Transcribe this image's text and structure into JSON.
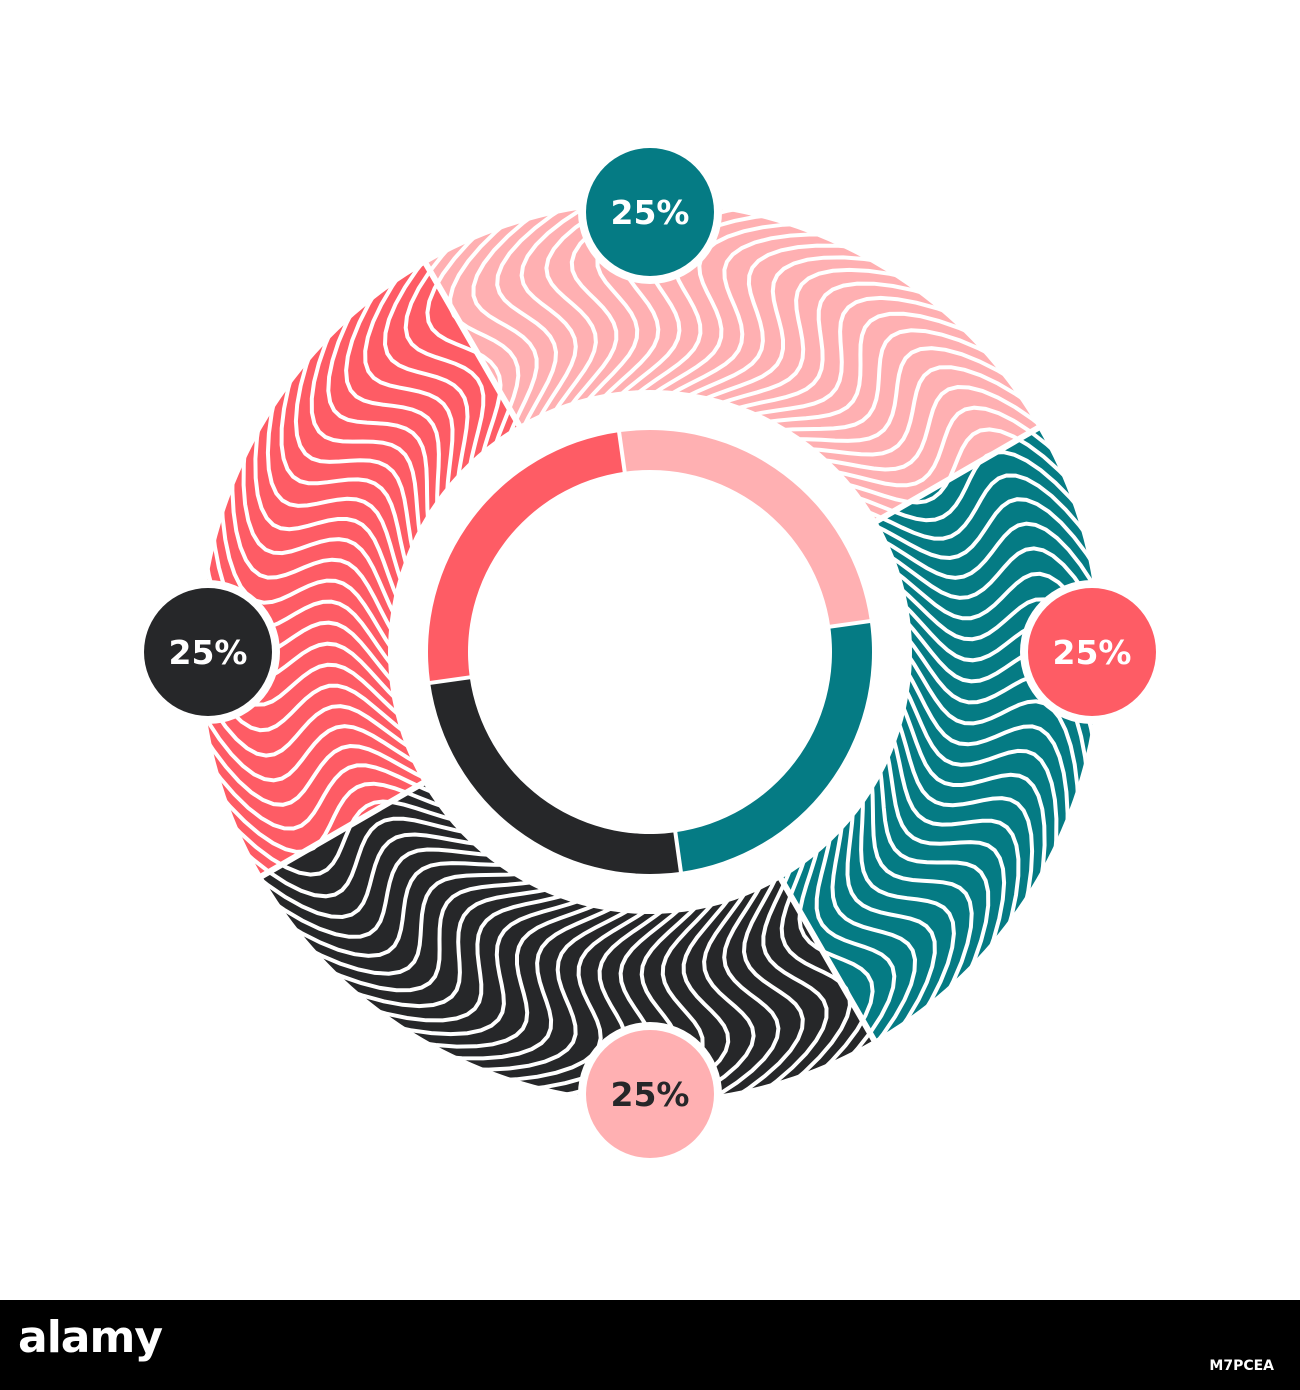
{
  "chart_data": {
    "type": "pie",
    "style": "donut with wavy striped outer ring and thin inner ring",
    "categories": [
      "",
      "",
      "",
      ""
    ],
    "values": [
      25,
      25,
      25,
      25
    ],
    "labels": [
      "25%",
      "25%",
      "25%",
      "25%"
    ],
    "slice_colors": [
      "#FFB0B2",
      "#057B84",
      "#262729",
      "#FE5C65"
    ],
    "badge_colors": [
      "#057B84",
      "#FE5C65",
      "#FFB0B2",
      "#262729"
    ],
    "badge_text_colors": [
      "#ffffff",
      "#ffffff",
      "#262729",
      "#ffffff"
    ],
    "title": "",
    "legend": "none"
  },
  "footer": {
    "logo": "alamy",
    "image_code": "M7PCEA"
  }
}
